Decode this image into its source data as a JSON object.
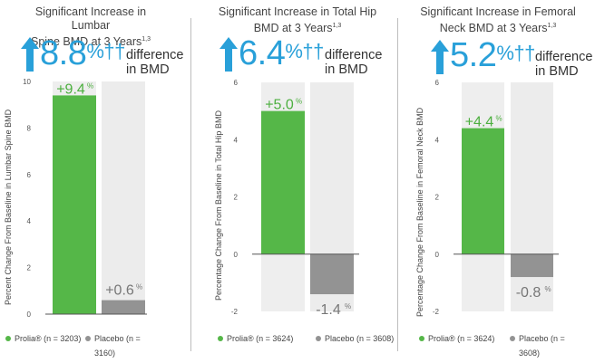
{
  "colors": {
    "prolia": "#55b748",
    "placebo": "#939393",
    "placebo_bg": "#ececec",
    "prolia_bg": "#eeeeee",
    "accent_blue": "#29a0d9"
  },
  "panels": [
    {
      "title_line1": "Significant Increase in Lumbar",
      "title_line2": "Spine BMD at 3 Years",
      "title_sup": "1,3",
      "headline_value": "8.8",
      "headline_sup": "%††",
      "diff_line1": "difference",
      "diff_line2": "in BMD",
      "ylabel": "Percent Change From Baseline in Lumbar Spine BMD",
      "prolia_label": "+9.4",
      "placebo_label": "+0.6",
      "label_sup": "%",
      "legend_prolia": "Prolia® (n = 3203)",
      "legend_placebo": "Placebo (n = 3160)"
    },
    {
      "title_line1": "Significant Increase in Total Hip",
      "title_line2": "BMD at 3 Years",
      "title_sup": "1,3",
      "headline_value": "6.4",
      "headline_sup": "%††",
      "diff_line1": "difference",
      "diff_line2": "in BMD",
      "ylabel": "Percentage Change From Baseline in Total Hip BMD",
      "prolia_label": "+5.0",
      "placebo_label": "-1.4",
      "label_sup": "%",
      "legend_prolia": "Prolia® (n = 3624)",
      "legend_placebo": "Placebo (n = 3608)"
    },
    {
      "title_line1": "Significant Increase in Femoral",
      "title_line2": "Neck BMD at 3 Years",
      "title_sup": "1,3",
      "headline_value": "5.2",
      "headline_sup": "%††",
      "diff_line1": "difference",
      "diff_line2": "in BMD",
      "ylabel": "Percentage Change From Baseline in Femoral Neck BMD",
      "prolia_label": "+4.4",
      "placebo_label": "-0.8",
      "label_sup": "%",
      "legend_prolia": "Prolia® (n = 3624)",
      "legend_placebo": "Placebo (n = 3608)"
    }
  ],
  "chart_data": [
    {
      "type": "bar",
      "title": "Significant Increase in Lumbar Spine BMD at 3 Years",
      "ylabel": "Percent Change From Baseline in Lumbar Spine BMD",
      "categories": [
        "Prolia® (n = 3203)",
        "Placebo (n = 3160)"
      ],
      "values": [
        9.4,
        0.6
      ],
      "yticks": [
        0,
        2,
        4,
        6,
        8,
        10
      ],
      "ylim": [
        0,
        10
      ],
      "headline_difference": 8.8
    },
    {
      "type": "bar",
      "title": "Significant Increase in Total Hip BMD at 3 Years",
      "ylabel": "Percentage Change From Baseline in Total Hip BMD",
      "categories": [
        "Prolia® (n = 3624)",
        "Placebo (n = 3608)"
      ],
      "values": [
        5.0,
        -1.4
      ],
      "yticks": [
        -2,
        0,
        2,
        4,
        6
      ],
      "ylim": [
        -2,
        6
      ],
      "headline_difference": 6.4
    },
    {
      "type": "bar",
      "title": "Significant Increase in Femoral Neck BMD at 3 Years",
      "ylabel": "Percentage Change From Baseline in Femoral Neck BMD",
      "categories": [
        "Prolia® (n = 3624)",
        "Placebo (n = 3608)"
      ],
      "values": [
        4.4,
        -0.8
      ],
      "yticks": [
        -2,
        0,
        2,
        4,
        6
      ],
      "ylim": [
        -2,
        6
      ],
      "headline_difference": 5.2
    }
  ]
}
